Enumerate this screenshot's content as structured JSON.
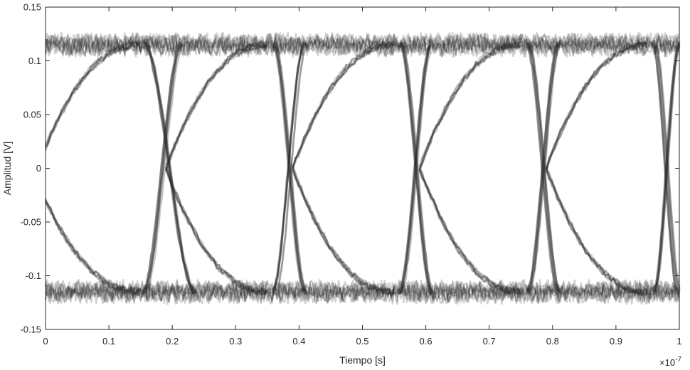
{
  "chart_data": {
    "type": "line",
    "title": "",
    "xlabel": "Tiempo [s]",
    "ylabel": "Amplitud [V]",
    "x_exponent_label": "×10",
    "x_exponent_power": "-7",
    "x_scale_factor": 1e-07,
    "xlim": [
      0,
      1
    ],
    "ylim": [
      -0.15,
      0.15
    ],
    "xticks": [
      0,
      0.1,
      0.2,
      0.3,
      0.4,
      0.5,
      0.6,
      0.7,
      0.8,
      0.9,
      1
    ],
    "xtick_labels": [
      "0",
      "0.1",
      "0.2",
      "0.3",
      "0.4",
      "0.5",
      "0.6",
      "0.7",
      "0.8",
      "0.9",
      "1"
    ],
    "yticks": [
      0.15,
      0.1,
      0.05,
      0,
      -0.05,
      -0.1,
      -0.15
    ],
    "ytick_labels": [
      "0.15",
      "0.1",
      "0.05",
      "0",
      "-0.05",
      "-0.1",
      "-0.15"
    ],
    "grid": false,
    "legend": "none",
    "plot_kind": "eye diagram",
    "levels": [
      0.115,
      -0.115
    ],
    "transitions": [
      {
        "kind": "rising",
        "start": 0.14,
        "end": 0.22,
        "x0": 0.155,
        "x1": 0.215
      },
      {
        "kind": "falling",
        "start": 0.14,
        "end": 0.22,
        "x0": 0.155,
        "x1": 0.235
      },
      {
        "kind": "rising",
        "start": 0.33,
        "end": 0.42,
        "x0": 0.36,
        "x1": 0.41
      },
      {
        "kind": "falling",
        "start": 0.33,
        "end": 0.42,
        "x0": 0.36,
        "x1": 0.41
      },
      {
        "kind": "rising",
        "start": 0.54,
        "end": 0.63,
        "x0": 0.56,
        "x1": 0.61
      },
      {
        "kind": "falling",
        "start": 0.54,
        "end": 0.63,
        "x0": 0.56,
        "x1": 0.61
      },
      {
        "kind": "rising",
        "start": 0.74,
        "end": 0.83,
        "x0": 0.76,
        "x1": 0.81
      },
      {
        "kind": "falling",
        "start": 0.74,
        "end": 0.83,
        "x0": 0.76,
        "x1": 0.81
      },
      {
        "kind": "rising",
        "start": 0.94,
        "end": 1.0,
        "x0": 0.96,
        "x1": 1.0
      },
      {
        "kind": "falling",
        "start": 0.94,
        "end": 1.0,
        "x0": 0.96,
        "x1": 1.0
      }
    ],
    "crossing_times": [
      0.19,
      0.39,
      0.59,
      0.79,
      0.99
    ],
    "eye_arcs": [
      {
        "kind": "rising",
        "x_from": 0.0,
        "x_to": 0.15,
        "y_from": 0.02,
        "y_to": 0.115
      },
      {
        "kind": "falling",
        "x_from": 0.0,
        "x_to": 0.15,
        "y_from": -0.03,
        "y_to": -0.115
      },
      {
        "kind": "rising",
        "x_from": 0.19,
        "x_to": 0.35,
        "y_from": 0.0,
        "y_to": 0.115
      },
      {
        "kind": "falling",
        "x_from": 0.19,
        "x_to": 0.35,
        "y_from": 0.0,
        "y_to": -0.115
      },
      {
        "kind": "rising",
        "x_from": 0.39,
        "x_to": 0.55,
        "y_from": 0.0,
        "y_to": 0.115
      },
      {
        "kind": "falling",
        "x_from": 0.39,
        "x_to": 0.55,
        "y_from": 0.0,
        "y_to": -0.115
      },
      {
        "kind": "rising",
        "x_from": 0.59,
        "x_to": 0.75,
        "y_from": 0.0,
        "y_to": 0.115
      },
      {
        "kind": "falling",
        "x_from": 0.59,
        "x_to": 0.75,
        "y_from": 0.0,
        "y_to": -0.115
      },
      {
        "kind": "rising",
        "x_from": 0.79,
        "x_to": 0.95,
        "y_from": 0.0,
        "y_to": 0.115
      },
      {
        "kind": "falling",
        "x_from": 0.79,
        "x_to": 0.95,
        "y_from": 0.0,
        "y_to": -0.115
      }
    ],
    "trace_color": "#2b2b2b"
  }
}
